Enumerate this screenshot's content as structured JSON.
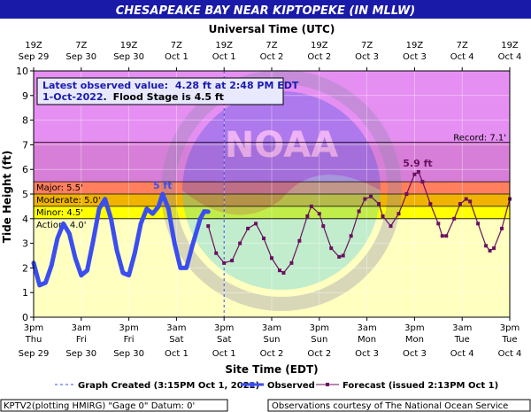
{
  "header": {
    "title": "CHESAPEAKE BAY NEAR KIPTOPEKE (IN MLLW)",
    "top_axis_title": "Universal Time (UTC)",
    "bottom_axis_title": "Site Time (EDT)"
  },
  "info_box": {
    "line1_label": "Latest observed value:",
    "line1_value": "4.28 ft at 2:48 PM EDT",
    "line2_date": "1-Oct-2022",
    "line2_sep": ".",
    "line2_text": "Flood Stage is 4.5 ft"
  },
  "legend": {
    "graph_created": "Graph Created (3:15PM Oct 1, 2022)",
    "observed": "Observed",
    "forecast": "Forecast (issued 2:13PM Oct 1)"
  },
  "footer": {
    "left": "KPTV2(plotting HMIRG) \"Gage 0\" Datum: 0'",
    "right": "Observations courtesy of The National Ocean Service"
  },
  "watermark": {
    "text": "NOAA",
    "ring_text": "NATIONAL OCEANIC AND ATMOSPHERIC ADMINISTRATION",
    "dept_text": "U.S. DEPARTMENT OF COMMERCE"
  },
  "colors": {
    "header_bg": "#1a1aa8",
    "record_band": "#e58ff2",
    "major_band": "#d77fd8",
    "moderate_band": "#ff7f5f",
    "minor_band": "#f0b400",
    "action_band": "#ffff00",
    "below_action": "#ffffc0",
    "observed": "#3a4ef0",
    "forecast": "#6a1060",
    "info_text": "#1a1ab0"
  },
  "chart_data": {
    "type": "line",
    "ylabel": "Tide Height (ft)",
    "ylim": [
      0,
      10
    ],
    "x_unit": "hours from 3pm Thu Sep 29 (EDT)",
    "xlim": [
      0,
      120
    ],
    "y_ticks": [
      "0",
      "1",
      "2",
      "3",
      "4",
      "5",
      "6",
      "7",
      "8",
      "9",
      "10"
    ],
    "top_ticks": [
      {
        "x": 0,
        "l1": "19Z",
        "l2": "Sep 29"
      },
      {
        "x": 12,
        "l1": "7Z",
        "l2": "Sep 30"
      },
      {
        "x": 24,
        "l1": "19Z",
        "l2": "Sep 30"
      },
      {
        "x": 36,
        "l1": "7Z",
        "l2": "Oct 1"
      },
      {
        "x": 48,
        "l1": "19Z",
        "l2": "Oct 1"
      },
      {
        "x": 60,
        "l1": "7Z",
        "l2": "Oct 2"
      },
      {
        "x": 72,
        "l1": "19Z",
        "l2": "Oct 2"
      },
      {
        "x": 84,
        "l1": "7Z",
        "l2": "Oct 3"
      },
      {
        "x": 96,
        "l1": "19Z",
        "l2": "Oct 3"
      },
      {
        "x": 108,
        "l1": "7Z",
        "l2": "Oct 4"
      },
      {
        "x": 120,
        "l1": "19Z",
        "l2": "Oct 4"
      }
    ],
    "bottom_ticks": [
      {
        "x": 0,
        "l1": "3pm",
        "l2": "Thu",
        "l3": "Sep 29"
      },
      {
        "x": 12,
        "l1": "3am",
        "l2": "Fri",
        "l3": "Sep 30"
      },
      {
        "x": 24,
        "l1": "3pm",
        "l2": "Fri",
        "l3": "Sep 30"
      },
      {
        "x": 36,
        "l1": "3am",
        "l2": "Sat",
        "l3": "Oct 1"
      },
      {
        "x": 48,
        "l1": "3pm",
        "l2": "Sat",
        "l3": "Oct 1"
      },
      {
        "x": 60,
        "l1": "3am",
        "l2": "Sun",
        "l3": "Oct 2"
      },
      {
        "x": 72,
        "l1": "3pm",
        "l2": "Sun",
        "l3": "Oct 2"
      },
      {
        "x": 84,
        "l1": "3am",
        "l2": "Mon",
        "l3": "Oct 3"
      },
      {
        "x": 96,
        "l1": "3pm",
        "l2": "Mon",
        "l3": "Oct 3"
      },
      {
        "x": 108,
        "l1": "3am",
        "l2": "Tue",
        "l3": "Oct 4"
      },
      {
        "x": 120,
        "l1": "3pm",
        "l2": "Tue",
        "l3": "Oct 4"
      }
    ],
    "stages": [
      {
        "name": "Record",
        "label": "Record: 7.1'",
        "value": 7.1
      },
      {
        "name": "Major",
        "label": "Major: 5.5'",
        "value": 5.5
      },
      {
        "name": "Moderate",
        "label": "Moderate: 5.0'",
        "value": 5.0
      },
      {
        "name": "Minor",
        "label": "Minor: 4.5'",
        "value": 4.5
      },
      {
        "name": "Action",
        "label": "Action: 4.0'",
        "value": 4.0
      }
    ],
    "graph_created_x": 48,
    "annotations": [
      {
        "text": "5 ft",
        "x": 32.5,
        "y": 5.0,
        "color": "observed"
      },
      {
        "text": "5.9 ft",
        "x": 96.8,
        "y": 5.9,
        "color": "forecast"
      }
    ],
    "series": [
      {
        "name": "Observed",
        "points": [
          [
            0,
            2.2
          ],
          [
            1.5,
            1.3
          ],
          [
            3,
            1.4
          ],
          [
            4.5,
            2.1
          ],
          [
            6,
            3.2
          ],
          [
            7.5,
            3.8
          ],
          [
            9,
            3.4
          ],
          [
            10.5,
            2.4
          ],
          [
            12,
            1.7
          ],
          [
            13.5,
            1.9
          ],
          [
            15,
            3.1
          ],
          [
            16.5,
            4.4
          ],
          [
            18,
            4.8
          ],
          [
            19.5,
            4.0
          ],
          [
            21,
            2.7
          ],
          [
            22.5,
            1.8
          ],
          [
            24,
            1.7
          ],
          [
            25.5,
            2.6
          ],
          [
            27,
            3.8
          ],
          [
            28.5,
            4.4
          ],
          [
            30,
            4.2
          ],
          [
            31.5,
            4.5
          ],
          [
            32.5,
            5.0
          ],
          [
            34,
            4.4
          ],
          [
            35.5,
            3.0
          ],
          [
            37,
            2.0
          ],
          [
            38.5,
            2.0
          ],
          [
            40,
            2.9
          ],
          [
            42,
            4.0
          ],
          [
            43,
            4.3
          ],
          [
            44,
            4.28
          ]
        ]
      },
      {
        "name": "Forecast",
        "points": [
          [
            44,
            3.7
          ],
          [
            46,
            2.6
          ],
          [
            48,
            2.2
          ],
          [
            50,
            2.3
          ],
          [
            52,
            3.0
          ],
          [
            54,
            3.6
          ],
          [
            56,
            3.8
          ],
          [
            58,
            3.2
          ],
          [
            60,
            2.4
          ],
          [
            62,
            1.9
          ],
          [
            63,
            1.8
          ],
          [
            65,
            2.2
          ],
          [
            67,
            3.1
          ],
          [
            69,
            4.1
          ],
          [
            70,
            4.5
          ],
          [
            72,
            4.2
          ],
          [
            73,
            3.7
          ],
          [
            75,
            2.8
          ],
          [
            77,
            2.45
          ],
          [
            78,
            2.5
          ],
          [
            80,
            3.3
          ],
          [
            82,
            4.3
          ],
          [
            83.5,
            4.8
          ],
          [
            85,
            4.9
          ],
          [
            87,
            4.6
          ],
          [
            88,
            4.1
          ],
          [
            90,
            3.7
          ],
          [
            92,
            4.2
          ],
          [
            94,
            5.0
          ],
          [
            96,
            5.8
          ],
          [
            97,
            5.9
          ],
          [
            98,
            5.5
          ],
          [
            100,
            4.6
          ],
          [
            102,
            3.8
          ],
          [
            103,
            3.3
          ],
          [
            104,
            3.3
          ],
          [
            106,
            4.0
          ],
          [
            107.5,
            4.6
          ],
          [
            109,
            4.8
          ],
          [
            110,
            4.7
          ],
          [
            112,
            3.8
          ],
          [
            114,
            2.9
          ],
          [
            115,
            2.7
          ],
          [
            116,
            2.8
          ],
          [
            118,
            3.6
          ],
          [
            120,
            4.8
          ]
        ]
      }
    ]
  }
}
